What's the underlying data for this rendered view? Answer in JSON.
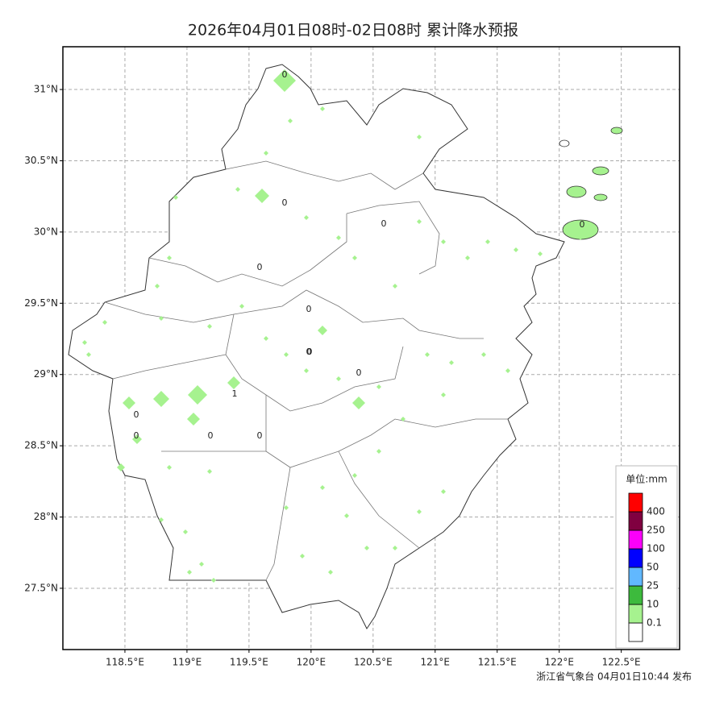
{
  "title": "2026年04月01日08时-02日08时 累计降水预报",
  "xlim": [
    118.0,
    122.97
  ],
  "ylim": [
    27.07,
    31.3
  ],
  "xticks": [
    {
      "value": 118.5,
      "label": "118.5°E"
    },
    {
      "value": 119,
      "label": "119°E"
    },
    {
      "value": 119.5,
      "label": "119.5°E"
    },
    {
      "value": 120,
      "label": "120°E"
    },
    {
      "value": 120.5,
      "label": "120.5°E"
    },
    {
      "value": 121,
      "label": "121°E"
    },
    {
      "value": 121.5,
      "label": "121.5°E"
    },
    {
      "value": 122,
      "label": "122°E"
    },
    {
      "value": 122.5,
      "label": "122.5°E"
    }
  ],
  "yticks": [
    {
      "value": 27.5,
      "label": "27.5°N"
    },
    {
      "value": 28,
      "label": "28°N"
    },
    {
      "value": 28.5,
      "label": "28.5°N"
    },
    {
      "value": 29,
      "label": "29°N"
    },
    {
      "value": 29.5,
      "label": "29.5°N"
    },
    {
      "value": 30,
      "label": "30°N"
    },
    {
      "value": 30.5,
      "label": "30.5°N"
    },
    {
      "value": 31,
      "label": "31°N"
    }
  ],
  "map_labels": [
    "0",
    "0",
    "0",
    "0",
    "0",
    "0",
    "0",
    "0",
    "1",
    "0",
    "0",
    "0",
    "0",
    "0"
  ],
  "legend": {
    "title": "单位:mm",
    "colors": [
      "#ffffff",
      "#a6f28f",
      "#3dba3d",
      "#61b8ff",
      "#0000ff",
      "#fa00fa",
      "#800040",
      "#ff0000"
    ],
    "labels": [
      "0.1",
      "10",
      "25",
      "50",
      "100",
      "250",
      "400"
    ]
  },
  "footer": "浙江省气象台 04月01日10:44 发布"
}
